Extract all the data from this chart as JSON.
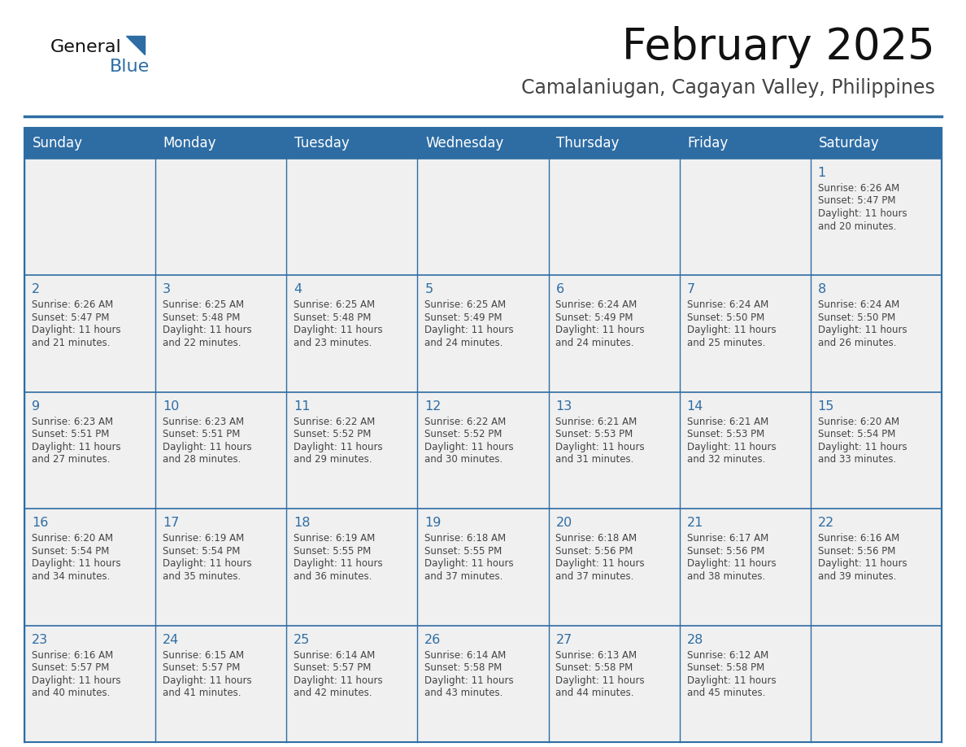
{
  "title": "February 2025",
  "subtitle": "Camalaniugan, Cagayan Valley, Philippines",
  "header_bg": "#2E6DA4",
  "header_text_color": "#FFFFFF",
  "cell_bg": "#F0F0F0",
  "border_color": "#2E6DA4",
  "day_headers": [
    "Sunday",
    "Monday",
    "Tuesday",
    "Wednesday",
    "Thursday",
    "Friday",
    "Saturday"
  ],
  "title_color": "#111111",
  "subtitle_color": "#444444",
  "day_number_color": "#2E6DA4",
  "cell_text_color": "#444444",
  "days": [
    {
      "day": 1,
      "col": 6,
      "row": 0,
      "sunrise": "6:26 AM",
      "sunset": "5:47 PM",
      "minutes": "20 minutes."
    },
    {
      "day": 2,
      "col": 0,
      "row": 1,
      "sunrise": "6:26 AM",
      "sunset": "5:47 PM",
      "minutes": "21 minutes."
    },
    {
      "day": 3,
      "col": 1,
      "row": 1,
      "sunrise": "6:25 AM",
      "sunset": "5:48 PM",
      "minutes": "22 minutes."
    },
    {
      "day": 4,
      "col": 2,
      "row": 1,
      "sunrise": "6:25 AM",
      "sunset": "5:48 PM",
      "minutes": "23 minutes."
    },
    {
      "day": 5,
      "col": 3,
      "row": 1,
      "sunrise": "6:25 AM",
      "sunset": "5:49 PM",
      "minutes": "24 minutes."
    },
    {
      "day": 6,
      "col": 4,
      "row": 1,
      "sunrise": "6:24 AM",
      "sunset": "5:49 PM",
      "minutes": "24 minutes."
    },
    {
      "day": 7,
      "col": 5,
      "row": 1,
      "sunrise": "6:24 AM",
      "sunset": "5:50 PM",
      "minutes": "25 minutes."
    },
    {
      "day": 8,
      "col": 6,
      "row": 1,
      "sunrise": "6:24 AM",
      "sunset": "5:50 PM",
      "minutes": "26 minutes."
    },
    {
      "day": 9,
      "col": 0,
      "row": 2,
      "sunrise": "6:23 AM",
      "sunset": "5:51 PM",
      "minutes": "27 minutes."
    },
    {
      "day": 10,
      "col": 1,
      "row": 2,
      "sunrise": "6:23 AM",
      "sunset": "5:51 PM",
      "minutes": "28 minutes."
    },
    {
      "day": 11,
      "col": 2,
      "row": 2,
      "sunrise": "6:22 AM",
      "sunset": "5:52 PM",
      "minutes": "29 minutes."
    },
    {
      "day": 12,
      "col": 3,
      "row": 2,
      "sunrise": "6:22 AM",
      "sunset": "5:52 PM",
      "minutes": "30 minutes."
    },
    {
      "day": 13,
      "col": 4,
      "row": 2,
      "sunrise": "6:21 AM",
      "sunset": "5:53 PM",
      "minutes": "31 minutes."
    },
    {
      "day": 14,
      "col": 5,
      "row": 2,
      "sunrise": "6:21 AM",
      "sunset": "5:53 PM",
      "minutes": "32 minutes."
    },
    {
      "day": 15,
      "col": 6,
      "row": 2,
      "sunrise": "6:20 AM",
      "sunset": "5:54 PM",
      "minutes": "33 minutes."
    },
    {
      "day": 16,
      "col": 0,
      "row": 3,
      "sunrise": "6:20 AM",
      "sunset": "5:54 PM",
      "minutes": "34 minutes."
    },
    {
      "day": 17,
      "col": 1,
      "row": 3,
      "sunrise": "6:19 AM",
      "sunset": "5:54 PM",
      "minutes": "35 minutes."
    },
    {
      "day": 18,
      "col": 2,
      "row": 3,
      "sunrise": "6:19 AM",
      "sunset": "5:55 PM",
      "minutes": "36 minutes."
    },
    {
      "day": 19,
      "col": 3,
      "row": 3,
      "sunrise": "6:18 AM",
      "sunset": "5:55 PM",
      "minutes": "37 minutes."
    },
    {
      "day": 20,
      "col": 4,
      "row": 3,
      "sunrise": "6:18 AM",
      "sunset": "5:56 PM",
      "minutes": "37 minutes."
    },
    {
      "day": 21,
      "col": 5,
      "row": 3,
      "sunrise": "6:17 AM",
      "sunset": "5:56 PM",
      "minutes": "38 minutes."
    },
    {
      "day": 22,
      "col": 6,
      "row": 3,
      "sunrise": "6:16 AM",
      "sunset": "5:56 PM",
      "minutes": "39 minutes."
    },
    {
      "day": 23,
      "col": 0,
      "row": 4,
      "sunrise": "6:16 AM",
      "sunset": "5:57 PM",
      "minutes": "40 minutes."
    },
    {
      "day": 24,
      "col": 1,
      "row": 4,
      "sunrise": "6:15 AM",
      "sunset": "5:57 PM",
      "minutes": "41 minutes."
    },
    {
      "day": 25,
      "col": 2,
      "row": 4,
      "sunrise": "6:14 AM",
      "sunset": "5:57 PM",
      "minutes": "42 minutes."
    },
    {
      "day": 26,
      "col": 3,
      "row": 4,
      "sunrise": "6:14 AM",
      "sunset": "5:58 PM",
      "minutes": "43 minutes."
    },
    {
      "day": 27,
      "col": 4,
      "row": 4,
      "sunrise": "6:13 AM",
      "sunset": "5:58 PM",
      "minutes": "44 minutes."
    },
    {
      "day": 28,
      "col": 5,
      "row": 4,
      "sunrise": "6:12 AM",
      "sunset": "5:58 PM",
      "minutes": "45 minutes."
    }
  ],
  "num_rows": 5,
  "num_cols": 7,
  "logo_text1": "General",
  "logo_text2": "Blue",
  "logo_color1": "#111111",
  "logo_color2": "#2E6DA4"
}
